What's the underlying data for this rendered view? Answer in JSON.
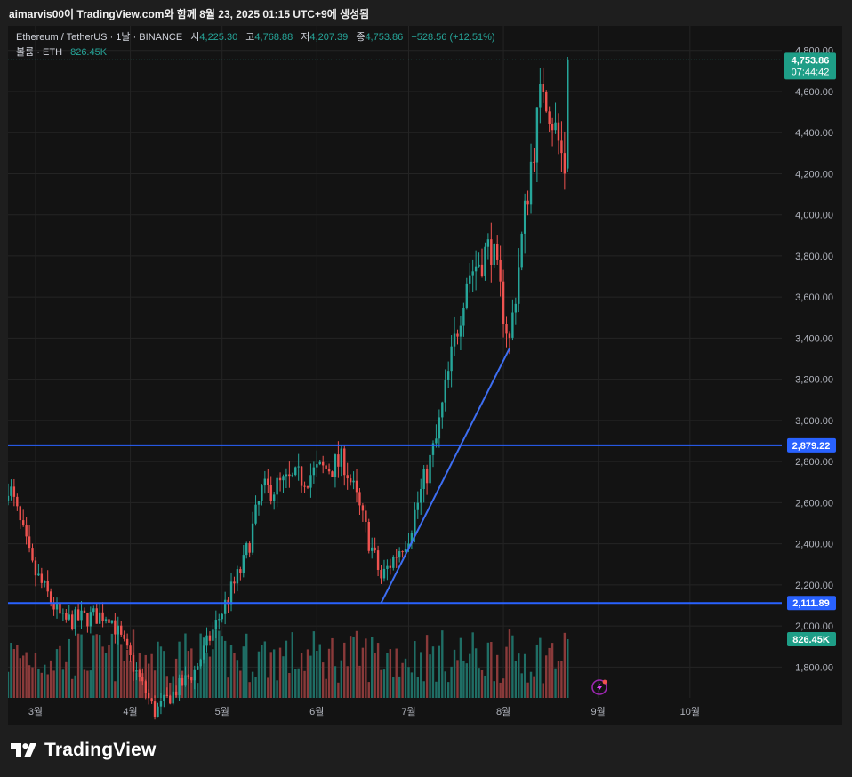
{
  "caption": "aimarvis00이 TradingView.com와 함께 8월 23, 2025 01:15 UTC+9에 생성됨",
  "header": {
    "symbol": "Ethereum / TetherUS · 1날 · BINANCE",
    "open_label": "시",
    "open": "4,225.30",
    "high_label": "고",
    "high": "4,768.88",
    "low_label": "저",
    "low": "4,207.39",
    "close_label": "종",
    "close": "4,753.86",
    "change": "+528.56 (+12.51%)",
    "volume_label": "볼륨 · ETH",
    "volume": "826.45K"
  },
  "badges": {
    "price": "4,753.86",
    "countdown": "07:44:42",
    "level_upper": "2,879.22",
    "level_lower": "2,111.89",
    "volume": "826.45K"
  },
  "brand": {
    "name": "TradingView"
  },
  "colors": {
    "up": "#26a69a",
    "down": "#ef5350",
    "up_volume": "#1f6e65",
    "down_volume": "#8a3a3a",
    "line": "#2962ff",
    "trend": "#3d6ef2",
    "background": "#131313",
    "grid": "#242424",
    "axis_text": "#b2b5be",
    "badge_up": "#1e9e87"
  },
  "chart_data": {
    "type": "candlestick",
    "title": "Ethereum / TetherUS · 1날 · BINANCE",
    "y_axis": {
      "ticks": [
        1800,
        2000,
        2200,
        2400,
        2600,
        2800,
        3000,
        3200,
        3400,
        3600,
        3800,
        4000,
        4200,
        4400,
        4600,
        4800
      ],
      "ylim": [
        1650,
        4920
      ],
      "side": "right"
    },
    "x_axis": {
      "ticks": [
        "3월",
        "4월",
        "5월",
        "6월",
        "7월",
        "8월",
        "9월",
        "10월"
      ],
      "range": [
        "2025-02-20",
        "2025-10-31"
      ]
    },
    "grid": true,
    "horizontal_lines": [
      {
        "value": 2879.22,
        "label": "2,879.22"
      },
      {
        "value": 2111.89,
        "label": "2,111.89"
      }
    ],
    "trendline": {
      "from": {
        "date": "2025-06-22",
        "price": 2111.89
      },
      "to": {
        "date": "2025-08-03",
        "price": 3350
      }
    },
    "last": {
      "date": "2025-08-22",
      "price": 4753.86
    },
    "ohlc_last": {
      "open": 4225.3,
      "high": 4768.88,
      "low": 4207.39,
      "close": 4753.86
    },
    "volume_last": "826.45K",
    "close_path": [
      {
        "date": "2025-02-20",
        "close": 2700
      },
      {
        "date": "2025-02-28",
        "close": 2280
      },
      {
        "date": "2025-03-10",
        "close": 2020
      },
      {
        "date": "2025-03-25",
        "close": 2060
      },
      {
        "date": "2025-04-09",
        "close": 1580
      },
      {
        "date": "2025-04-22",
        "close": 1780
      },
      {
        "date": "2025-05-08",
        "close": 2300
      },
      {
        "date": "2025-05-14",
        "close": 2650
      },
      {
        "date": "2025-06-10",
        "close": 2800
      },
      {
        "date": "2025-06-22",
        "close": 2230
      },
      {
        "date": "2025-07-01",
        "close": 2450
      },
      {
        "date": "2025-07-10",
        "close": 2900
      },
      {
        "date": "2025-07-20",
        "close": 3700
      },
      {
        "date": "2025-07-28",
        "close": 3850
      },
      {
        "date": "2025-08-03",
        "close": 3380
      },
      {
        "date": "2025-08-10",
        "close": 4250
      },
      {
        "date": "2025-08-14",
        "close": 4650
      },
      {
        "date": "2025-08-21",
        "close": 4230
      },
      {
        "date": "2025-08-22",
        "close": 4753.86
      }
    ]
  }
}
